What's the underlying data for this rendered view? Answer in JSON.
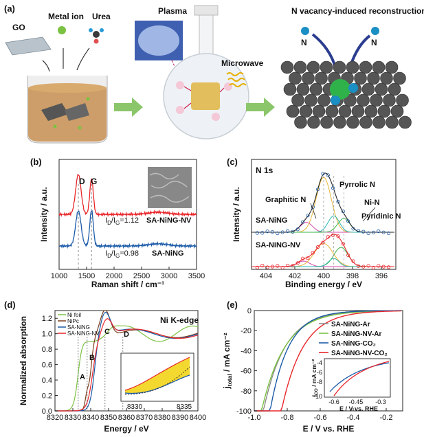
{
  "panel_a": {
    "letter": "(a)",
    "labels": {
      "go": "GO",
      "metal_ion": "Metal ion",
      "urea": "Urea",
      "plasma": "Plasma",
      "microwave": "Microwave",
      "title_right": "N vacancy-induced reconstruction",
      "n_left": "N",
      "n_right": "N"
    }
  },
  "chart_data": [
    {
      "panel": "(b)",
      "type": "line",
      "title": "",
      "xlabel": "Raman shift / cm⁻¹",
      "ylabel": "Intensity / a.u.",
      "xlim": [
        1000,
        3500
      ],
      "xticks": [
        1000,
        1500,
        2000,
        2500,
        3000,
        3500
      ],
      "peak_labels": [
        "D",
        "G"
      ],
      "peaks_x": [
        1350,
        1590
      ],
      "series": [
        {
          "name": "SA-NiNG-NV",
          "color": "#e8262a",
          "ratio_text": "I",
          "ratio_sub": "D",
          "ratio_mid": "/I",
          "ratio_sub2": "G",
          "ratio_value": "=1.12"
        },
        {
          "name": "SA-NiNG",
          "color": "#1a5aa8",
          "ratio_text": "I",
          "ratio_sub": "D",
          "ratio_mid": "/I",
          "ratio_sub2": "G",
          "ratio_value": "=0.98"
        }
      ]
    },
    {
      "panel": "(c)",
      "type": "line",
      "title": "N 1s",
      "xlabel": "Binding energy / eV",
      "ylabel": "Intensity / a.u.",
      "xlim": [
        405,
        395
      ],
      "xticks": [
        404,
        402,
        400,
        398,
        396
      ],
      "annotations": [
        "Pyrrolic N",
        "Graphitic N",
        "Ni-N",
        "Pyridinic N"
      ],
      "series": [
        {
          "name": "SA-NiNG",
          "color": "#1a5aa8"
        },
        {
          "name": "SA-NiNG-NV",
          "color": "#e8262a"
        }
      ]
    },
    {
      "panel": "(d)",
      "type": "line",
      "title": "Ni K-edge",
      "xlabel": "Energy / eV",
      "ylabel": "Normalized absorption",
      "xlim": [
        8320,
        8400
      ],
      "ylim": [
        0.0,
        1.3
      ],
      "xticks": [
        8320,
        8330,
        8340,
        8350,
        8360,
        8370,
        8380,
        8390,
        8400
      ],
      "yticks": [
        0.0,
        0.2,
        0.4,
        0.6,
        0.8,
        1.0,
        1.2
      ],
      "feature_labels": [
        "A",
        "B",
        "C",
        "D"
      ],
      "inset": {
        "xlim": [
          8329,
          8336
        ],
        "xticks": [
          8330,
          8335
        ]
      },
      "series": [
        {
          "name": "Ni foil",
          "color": "#7cc242"
        },
        {
          "name": "NiPc",
          "color": "#7a3f1e"
        },
        {
          "name": "SA-NiNG",
          "color": "#1a5aa8"
        },
        {
          "name": "SA-NiNG-NV",
          "color": "#e8262a"
        }
      ]
    },
    {
      "panel": "(e)",
      "type": "line",
      "title": "",
      "xlabel": "E / V vs. RHE",
      "ylabel": "j",
      "ylabel_sub": "total",
      "ylabel_unit": " / mA cm⁻²",
      "xlim": [
        -1.0,
        -0.1
      ],
      "ylim": [
        -100,
        0
      ],
      "xticks": [
        -1.0,
        -0.8,
        -0.6,
        -0.4,
        -0.2
      ],
      "yticks": [
        0,
        -20,
        -40,
        -60,
        -80,
        -100
      ],
      "inset": {
        "ylabel": "j",
        "ylabel_sub": "CO",
        "ylabel_unit": " / mA cm⁻²",
        "xlabel": "E / V vs. RHE",
        "xticks": [
          -0.6,
          -0.45,
          -0.3
        ],
        "yticks": [
          -4,
          -6,
          -8,
          -10
        ]
      },
      "series": [
        {
          "name": "SA-NiNG-Ar",
          "color": "#8c8c8c"
        },
        {
          "name": "SA-NiNG-NV-Ar",
          "color": "#7cc242"
        },
        {
          "name": "SA-NiNG-CO₂",
          "color": "#1a5aa8"
        },
        {
          "name": "SA-NiNG-NV-CO₂",
          "color": "#e8262a"
        }
      ]
    }
  ],
  "colors": {
    "nv": "#e8262a",
    "ng": "#1a5aa8",
    "foil": "#7cc242",
    "nipc": "#7a3f1e",
    "ar": "#8c8c8c",
    "arrow_green": "#8cc66a"
  }
}
